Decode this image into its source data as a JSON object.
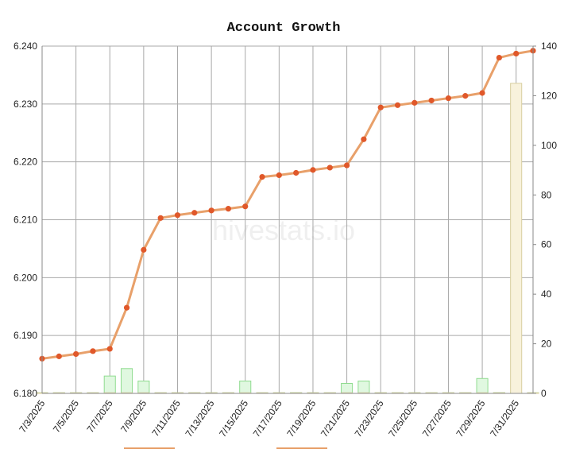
{
  "chart_data": {
    "type": "line",
    "title": "Account Growth",
    "watermark": "hivestats.io",
    "x": [
      "7/3/2025",
      "7/4/2025",
      "7/5/2025",
      "7/6/2025",
      "7/7/2025",
      "7/8/2025",
      "7/9/2025",
      "7/10/2025",
      "7/11/2025",
      "7/12/2025",
      "7/13/2025",
      "7/14/2025",
      "7/15/2025",
      "7/16/2025",
      "7/17/2025",
      "7/18/2025",
      "7/19/2025",
      "7/20/2025",
      "7/21/2025",
      "7/22/2025",
      "7/23/2025",
      "7/24/2025",
      "7/25/2025",
      "7/26/2025",
      "7/27/2025",
      "7/28/2025",
      "7/29/2025",
      "7/30/2025",
      "7/31/2025",
      "8/1/2025"
    ],
    "x_tick_labels": [
      "7/3/2025",
      "7/5/2025",
      "7/7/2025",
      "7/9/2025",
      "7/11/2025",
      "7/13/2025",
      "7/15/2025",
      "7/17/2025",
      "7/19/2025",
      "7/21/2025",
      "7/23/2025",
      "7/25/2025",
      "7/27/2025",
      "7/29/2025",
      "7/31/2025"
    ],
    "y_left": {
      "lim": [
        6.18,
        6.24
      ],
      "ticks": [
        "6.180",
        "6.190",
        "6.200",
        "6.210",
        "6.220",
        "6.230",
        "6.240"
      ]
    },
    "y_right": {
      "lim": [
        0,
        140
      ],
      "ticks": [
        "0",
        "20",
        "40",
        "60",
        "80",
        "100",
        "120",
        "140"
      ]
    },
    "grid": true,
    "series": [
      {
        "kind": "line",
        "axis": "left",
        "color": "#e8a06a",
        "marker_color": "#e0582a",
        "values": [
          6.186,
          6.1864,
          6.1868,
          6.1873,
          6.1877,
          6.1948,
          6.2048,
          6.2103,
          6.2108,
          6.2112,
          6.2116,
          6.2119,
          6.2123,
          6.2174,
          6.2177,
          6.2181,
          6.2186,
          6.219,
          6.2194,
          6.2239,
          6.2294,
          6.2298,
          6.2302,
          6.2306,
          6.231,
          6.2314,
          6.2319,
          6.238,
          6.2387,
          6.2392
        ]
      },
      {
        "kind": "bar",
        "axis": "right",
        "color": "#90dc90",
        "fill": "#e0f8e0",
        "values": [
          0,
          0,
          0,
          0,
          7,
          10,
          5,
          0,
          0,
          0,
          0,
          0,
          5,
          0,
          0,
          0.3,
          0,
          0,
          4,
          5,
          0,
          0,
          0,
          0,
          0,
          0,
          6,
          0.3,
          0.3,
          0
        ]
      },
      {
        "kind": "bar",
        "axis": "right",
        "color": "#d8cfa0",
        "fill": "#f8f2dc",
        "values": [
          0,
          0,
          0,
          0,
          0,
          0,
          0,
          0,
          0,
          0,
          0,
          0,
          0,
          0,
          0,
          0,
          0,
          0,
          0,
          0,
          0,
          0,
          0,
          0,
          0,
          0,
          0,
          0,
          125,
          0
        ]
      }
    ]
  }
}
